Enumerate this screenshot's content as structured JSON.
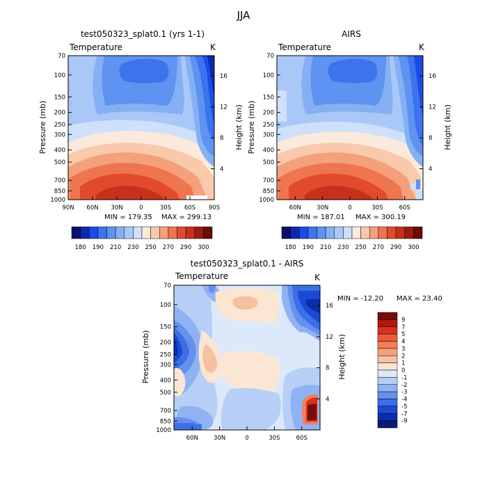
{
  "page_title": "JJA",
  "chart_data": [
    {
      "type": "heatmap",
      "title": "test050323_splat0.1 (yrs 1-1)",
      "field_label": "Temperature",
      "units": "K",
      "ylabel": "Pressure (mb)",
      "ylabel_right": "Height (km)",
      "xlabel": "",
      "x_tick_labels": [
        "90N",
        "60N",
        "30N",
        "0",
        "30S",
        "60S",
        "90S"
      ],
      "y_tick_labels": [
        "70",
        "100",
        "150",
        "200",
        "250",
        "300",
        "400",
        "500",
        "700",
        "850",
        "1000"
      ],
      "height_tick_labels": [
        "4",
        "8",
        "12",
        "16"
      ],
      "min_label": "MIN = 179.35",
      "max_label": "MAX = 299.13",
      "colorbar_labels": [
        "180",
        "190",
        "210",
        "230",
        "250",
        "270",
        "290",
        "300"
      ]
    },
    {
      "type": "heatmap",
      "title": "AIRS",
      "field_label": "Temperature",
      "units": "K",
      "ylabel": "Pressure (mb)",
      "ylabel_right": "Height (km)",
      "xlabel": "",
      "x_tick_labels": [
        "60N",
        "30N",
        "0",
        "30S",
        "60S"
      ],
      "y_tick_labels": [
        "70",
        "100",
        "150",
        "200",
        "250",
        "300",
        "400",
        "500",
        "700",
        "850",
        "1000"
      ],
      "height_tick_labels": [
        "4",
        "8",
        "12",
        "16"
      ],
      "min_label": "MIN = 187.01",
      "max_label": "MAX = 300.19",
      "colorbar_labels": [
        "180",
        "190",
        "210",
        "230",
        "250",
        "270",
        "290",
        "300"
      ]
    },
    {
      "type": "heatmap",
      "title": "test050323_splat0.1 - AIRS",
      "field_label": "Temperature",
      "units": "K",
      "ylabel": "Pressure (mb)",
      "ylabel_right": "Height (km)",
      "xlabel": "",
      "x_tick_labels": [
        "60N",
        "30N",
        "0",
        "30S",
        "60S"
      ],
      "y_tick_labels": [
        "70",
        "100",
        "150",
        "200",
        "250",
        "300",
        "400",
        "500",
        "700",
        "850",
        "1000"
      ],
      "height_tick_labels": [
        "4",
        "8",
        "12",
        "16"
      ],
      "min_label": "MIN = -12.20",
      "max_label": "MAX = 23.40",
      "colorbar_labels": [
        "9",
        "7",
        "5",
        "4",
        "3",
        "2",
        "1",
        "0",
        "-1",
        "-2",
        "-3",
        "-4",
        "-5",
        "-7",
        "-9"
      ]
    }
  ],
  "colors": {
    "temp_scale": [
      "#08126b",
      "#0c2ab0",
      "#1a4de6",
      "#3c74ee",
      "#5f93f1",
      "#86b0f4",
      "#aac8f7",
      "#cfe0fa",
      "#fbeadc",
      "#f8c9aa",
      "#f4a07b",
      "#ee7550",
      "#e24a2d",
      "#c7301c",
      "#9c1a10",
      "#6b0b06"
    ],
    "diff_scale": [
      "#7a0a0a",
      "#b3180f",
      "#d8301b",
      "#ee5a37",
      "#f47e58",
      "#f5a07c",
      "#f6c0a1",
      "#fbe5d3",
      "#dce9fb",
      "#b7cff7",
      "#8fb2f2",
      "#6591ed",
      "#3c6ee8",
      "#1b49d6",
      "#0d2eab",
      "#0a1b78"
    ]
  }
}
